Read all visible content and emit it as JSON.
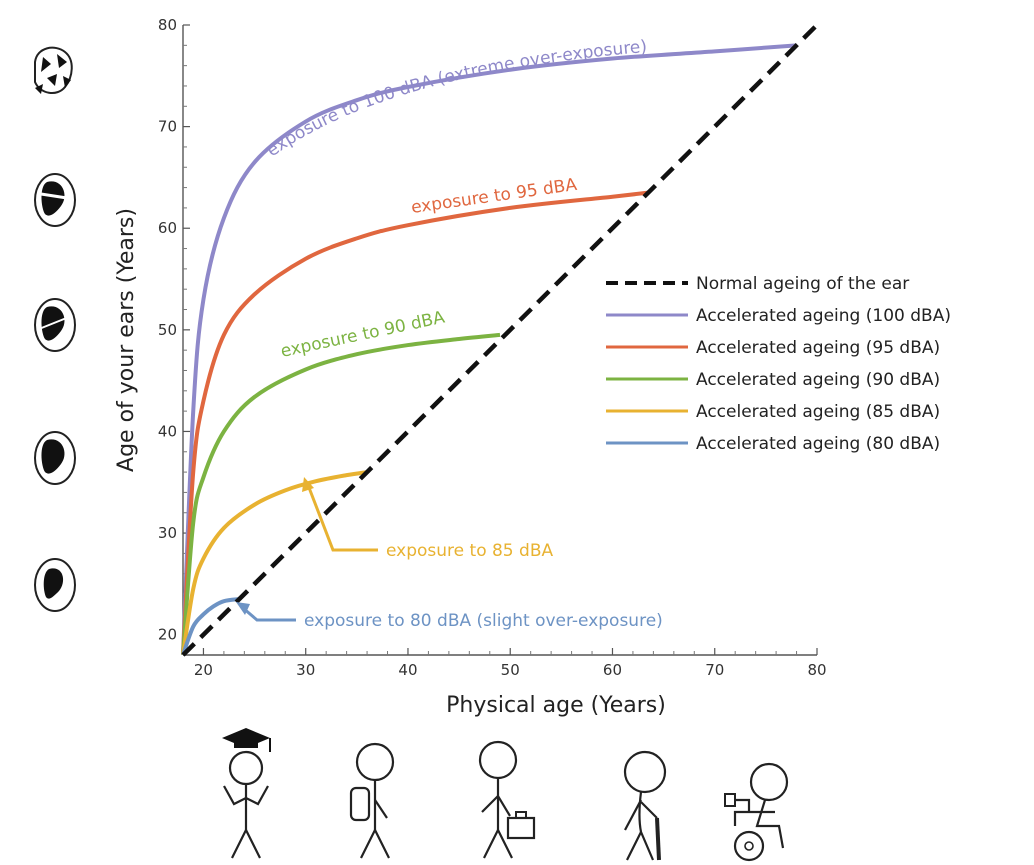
{
  "chart_data": {
    "type": "line",
    "xlabel": "Physical age (Years)",
    "ylabel": "Age of your ears (Years)",
    "xlim": [
      18,
      80
    ],
    "ylim": [
      18,
      80
    ],
    "x_ticks": [
      "20",
      "30",
      "40",
      "50",
      "60",
      "70",
      "80"
    ],
    "y_ticks": [
      "20",
      "30",
      "40",
      "50",
      "60",
      "70",
      "80"
    ],
    "grid": false,
    "legend_position": "right",
    "series": [
      {
        "name": "Normal ageing of the ear",
        "color": "#111111",
        "style": "dashed",
        "x": [
          18,
          80
        ],
        "y": [
          18,
          80
        ]
      },
      {
        "name": "Accelerated ageing (100 dBA)",
        "color": "#8e88c9",
        "x": [
          18,
          19,
          20,
          22,
          25,
          30,
          35,
          40,
          50,
          60,
          70,
          78
        ],
        "y": [
          18,
          42,
          53,
          61,
          66.5,
          70.5,
          72.6,
          73.9,
          75.6,
          76.7,
          77.4,
          78
        ]
      },
      {
        "name": "Accelerated ageing (95 dBA)",
        "color": "#e0673f",
        "x": [
          18,
          19,
          20,
          22,
          25,
          30,
          35,
          40,
          50,
          60,
          63.5
        ],
        "y": [
          18,
          36,
          43,
          49.5,
          53.5,
          57,
          59,
          60.3,
          62,
          63.1,
          63.5
        ]
      },
      {
        "name": "Accelerated ageing (90 dBA)",
        "color": "#7cb342",
        "x": [
          18,
          19,
          20,
          22,
          25,
          30,
          35,
          40,
          45,
          49
        ],
        "y": [
          18,
          31,
          35.5,
          40,
          43.4,
          46.1,
          47.6,
          48.5,
          49.1,
          49.5
        ]
      },
      {
        "name": "Accelerated ageing (85 dBA)",
        "color": "#e8b231",
        "x": [
          18,
          19,
          20,
          22,
          25,
          28,
          31,
          34,
          36
        ],
        "y": [
          18,
          24.5,
          27.5,
          30.5,
          32.8,
          34.2,
          35.1,
          35.7,
          36
        ]
      },
      {
        "name": "Accelerated ageing (80 dBA)",
        "color": "#6d93c4",
        "x": [
          18,
          19,
          20,
          21,
          22,
          23.5
        ],
        "y": [
          18,
          20.8,
          22,
          22.8,
          23.3,
          23.5
        ]
      }
    ],
    "annotations": [
      {
        "text": "exposure to 100 dBA (extreme over-exposure)",
        "color": "#8e88c9"
      },
      {
        "text": "exposure to 95 dBA",
        "color": "#e0673f"
      },
      {
        "text": "exposure to 90 dBA",
        "color": "#7cb342"
      },
      {
        "text": "exposure to 85 dBA",
        "color": "#e8b231"
      },
      {
        "text": "exposure to 80 dBA (slight over-exposure)",
        "color": "#6d93c4"
      }
    ]
  }
}
